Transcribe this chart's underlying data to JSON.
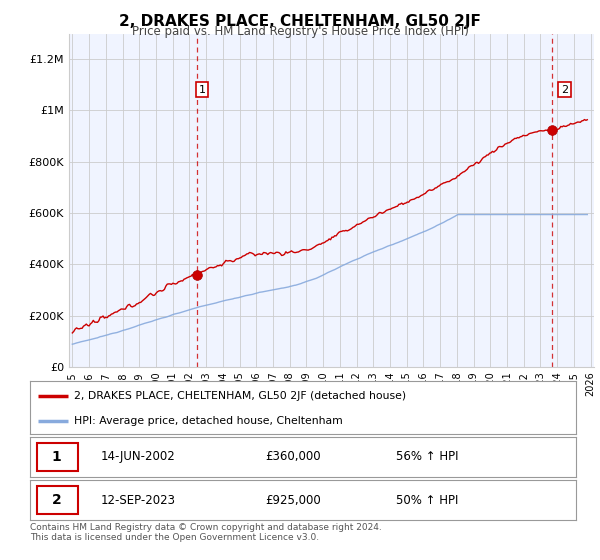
{
  "title": "2, DRAKES PLACE, CHELTENHAM, GL50 2JF",
  "subtitle": "Price paid vs. HM Land Registry's House Price Index (HPI)",
  "ylabel_ticks": [
    "£0",
    "£200K",
    "£400K",
    "£600K",
    "£800K",
    "£1M",
    "£1.2M"
  ],
  "ylim": [
    0,
    1300000
  ],
  "yticks": [
    0,
    200000,
    400000,
    600000,
    800000,
    1000000,
    1200000
  ],
  "x_start_year": 1995,
  "x_end_year": 2026,
  "sale1_date": "14-JUN-2002",
  "sale1_price": 360000,
  "sale1_label": "56% ↑ HPI",
  "sale1_x": 2002.45,
  "sale2_date": "12-SEP-2023",
  "sale2_price": 925000,
  "sale2_label": "50% ↑ HPI",
  "sale2_x": 2023.71,
  "legend_label1": "2, DRAKES PLACE, CHELTENHAM, GL50 2JF (detached house)",
  "legend_label2": "HPI: Average price, detached house, Cheltenham",
  "footer": "Contains HM Land Registry data © Crown copyright and database right 2024.\nThis data is licensed under the Open Government Licence v3.0.",
  "line1_color": "#cc0000",
  "line2_color": "#88aadd",
  "sale_marker_color": "#cc0000",
  "vline_color": "#cc0000",
  "background_color": "#ffffff",
  "grid_color": "#cccccc",
  "table_border_color": "#cc0000"
}
